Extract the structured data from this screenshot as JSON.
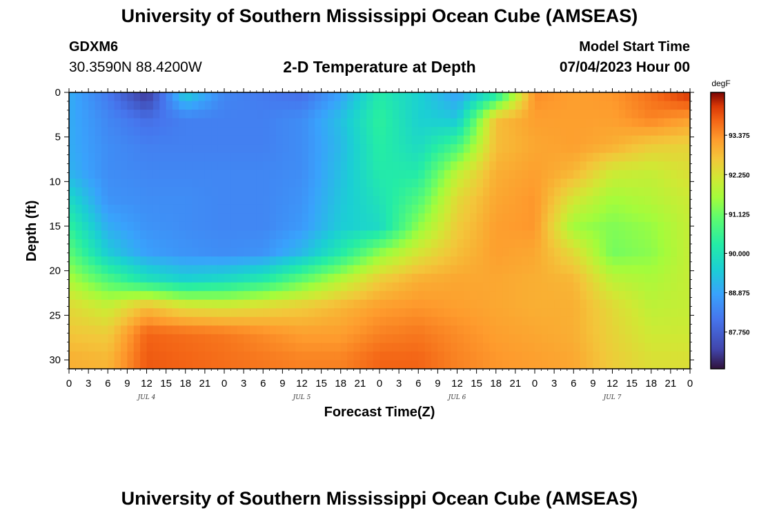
{
  "header": {
    "title": "University of Southern Mississippi Ocean Cube (AMSEAS)",
    "station": "GDXM6",
    "coords": "30.3590N  88.4200W",
    "subtitle": "2-D Temperature at Depth",
    "model_start_label": "Model Start Time",
    "model_start_date": "07/04/2023 Hour 00"
  },
  "footer": {
    "title": "University of Southern Mississippi Ocean Cube (AMSEAS)"
  },
  "chart_data": {
    "type": "heatmap",
    "title": "2-D Temperature at Depth",
    "xlabel": "Forecast Time(Z)",
    "ylabel": "Depth (ft)",
    "x_tick_labels": [
      "0",
      "3",
      "6",
      "9",
      "12",
      "15",
      "18",
      "21",
      "0",
      "3",
      "6",
      "9",
      "12",
      "15",
      "18",
      "21",
      "0",
      "3",
      "6",
      "9",
      "12",
      "15",
      "18",
      "21",
      "0",
      "3",
      "6",
      "9",
      "12",
      "15",
      "18",
      "21",
      "0"
    ],
    "x_hours_range": [
      0,
      96
    ],
    "day_labels": [
      {
        "label": "JUL 4",
        "hour": 12
      },
      {
        "label": "JUL 5",
        "hour": 36
      },
      {
        "label": "JUL 6",
        "hour": 60
      },
      {
        "label": "JUL 7",
        "hour": 84
      }
    ],
    "y_ticks": [
      0,
      5,
      10,
      15,
      20,
      25,
      30
    ],
    "y_tick_labels": [
      "0",
      "5",
      "10",
      "15",
      "20",
      "25",
      "30"
    ],
    "ylim": [
      0,
      31
    ],
    "colorbar": {
      "unit": "degF",
      "ticks": [
        87.75,
        88.875,
        90.0,
        91.125,
        92.25,
        93.375
      ],
      "tick_labels": [
        "87.750",
        "88.875",
        "90.000",
        "91.125",
        "92.250",
        "93.375"
      ],
      "range": [
        86.7,
        94.6
      ]
    },
    "depths_ft": [
      0,
      3,
      6,
      9,
      12,
      15,
      18,
      21,
      24,
      27,
      30
    ],
    "times_hr": [
      0,
      6,
      12,
      18,
      24,
      30,
      36,
      42,
      48,
      54,
      60,
      66,
      72,
      78,
      84,
      90,
      96
    ],
    "temperature_degF": [
      [
        89.0,
        88.2,
        87.0,
        89.6,
        88.4,
        88.2,
        88.0,
        88.8,
        90.2,
        89.6,
        88.8,
        89.9,
        93.4,
        93.2,
        93.3,
        93.7,
        94.3
      ],
      [
        89.0,
        88.4,
        88.0,
        88.3,
        88.3,
        88.3,
        88.5,
        89.3,
        90.4,
        89.6,
        89.4,
        92.8,
        93.2,
        93.2,
        93.2,
        93.5,
        93.2
      ],
      [
        89.0,
        88.5,
        88.3,
        88.3,
        88.3,
        88.3,
        88.5,
        89.2,
        90.3,
        89.8,
        90.7,
        92.8,
        93.1,
        93.2,
        93.0,
        92.6,
        92.5
      ],
      [
        89.1,
        88.5,
        88.4,
        88.4,
        88.4,
        88.4,
        88.5,
        89.3,
        90.2,
        90.2,
        91.9,
        93.0,
        93.2,
        92.9,
        92.1,
        92.0,
        92.3
      ],
      [
        89.8,
        88.6,
        88.5,
        88.5,
        88.4,
        88.4,
        88.6,
        89.4,
        90.0,
        90.8,
        92.4,
        93.1,
        93.3,
        92.2,
        91.6,
        91.8,
        92.1
      ],
      [
        90.4,
        89.0,
        88.6,
        88.5,
        88.4,
        88.4,
        88.7,
        89.5,
        89.8,
        91.4,
        92.6,
        93.2,
        93.3,
        91.6,
        91.3,
        91.5,
        92.0
      ],
      [
        91.0,
        89.5,
        88.8,
        88.6,
        88.5,
        88.6,
        89.2,
        90.2,
        91.4,
        92.2,
        92.8,
        93.2,
        93.1,
        92.4,
        91.2,
        91.4,
        92.0
      ],
      [
        91.7,
        90.8,
        90.0,
        89.6,
        89.8,
        90.2,
        91.0,
        91.8,
        92.6,
        93.0,
        93.1,
        93.1,
        93.0,
        92.9,
        91.9,
        91.7,
        92.0
      ],
      [
        92.4,
        92.0,
        92.8,
        92.3,
        92.2,
        92.4,
        92.6,
        92.9,
        93.2,
        93.3,
        93.2,
        93.1,
        93.0,
        93.0,
        92.4,
        91.9,
        92.0
      ],
      [
        92.7,
        92.6,
        93.8,
        93.7,
        93.6,
        93.4,
        93.2,
        93.2,
        93.5,
        93.6,
        93.4,
        93.2,
        93.1,
        93.0,
        92.5,
        92.1,
        92.1
      ],
      [
        93.0,
        92.9,
        93.9,
        93.8,
        93.7,
        93.6,
        93.5,
        93.5,
        93.8,
        93.8,
        93.5,
        93.3,
        93.2,
        93.1,
        92.6,
        92.3,
        92.3
      ]
    ]
  }
}
